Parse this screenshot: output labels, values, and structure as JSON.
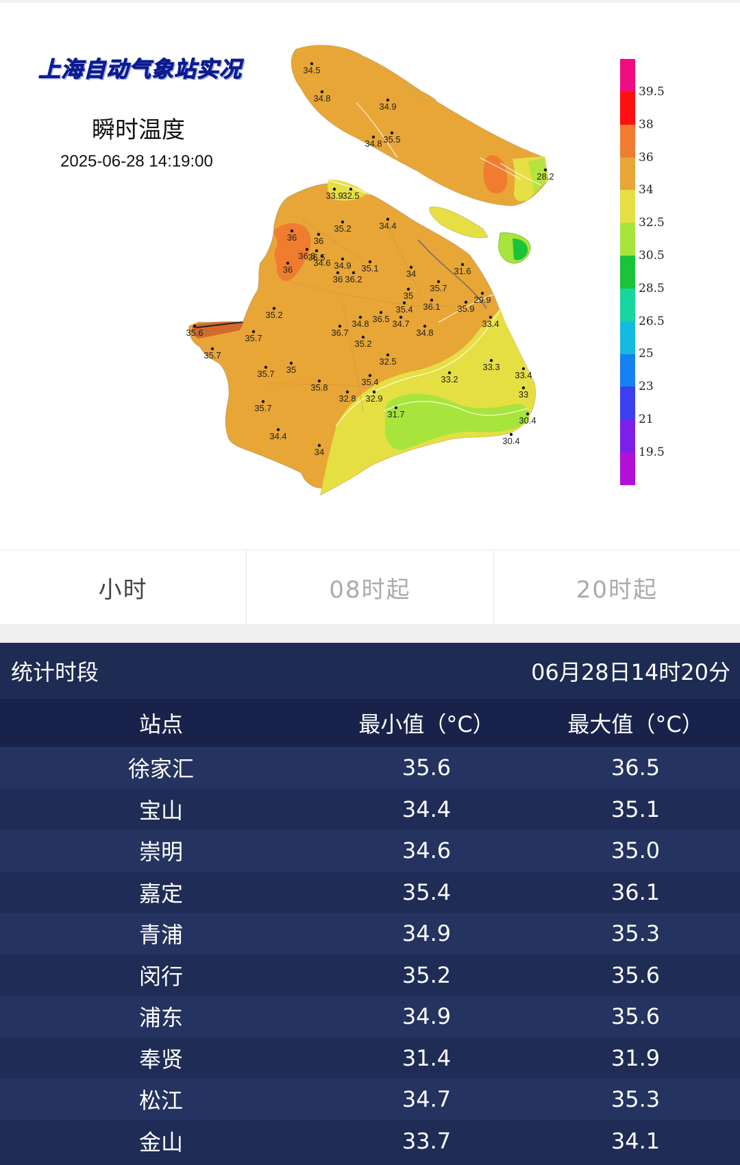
{
  "map": {
    "logo_title": "上海自动气象站实况",
    "subtitle": "瞬时温度",
    "timestamp": "2025-06-28 14:19:00",
    "legend": {
      "labels": [
        "39.5",
        "38",
        "36",
        "34",
        "32.5",
        "30.5",
        "28.5",
        "26.5",
        "25",
        "23",
        "21",
        "19.5"
      ],
      "colors": [
        "#ef0d7f",
        "#ff1010",
        "#f07c30",
        "#e8a637",
        "#e6df44",
        "#a8e53c",
        "#1ac33a",
        "#17d6a0",
        "#16b9e0",
        "#1681f0",
        "#3a3ff0",
        "#7a20e8",
        "#b010d8"
      ]
    },
    "stations": [
      {
        "v": "34.5"
      },
      {
        "v": "34.8"
      },
      {
        "v": "34.9"
      },
      {
        "v": "34.8"
      },
      {
        "v": "35.5"
      },
      {
        "v": "28.2"
      },
      {
        "v": "33.9"
      },
      {
        "v": "32.5"
      },
      {
        "v": "35.2"
      },
      {
        "v": "34.4"
      },
      {
        "v": "36.5"
      },
      {
        "v": "36"
      },
      {
        "v": "36"
      },
      {
        "v": "36.8"
      },
      {
        "v": "34.6"
      },
      {
        "v": "34.9"
      },
      {
        "v": "35.1"
      },
      {
        "v": "36"
      },
      {
        "v": "36.2"
      },
      {
        "v": "36"
      },
      {
        "v": "31.6"
      },
      {
        "v": "34"
      },
      {
        "v": "35.7"
      },
      {
        "v": "35"
      },
      {
        "v": "35.4"
      },
      {
        "v": "36.1"
      },
      {
        "v": "35.9"
      },
      {
        "v": "29.9"
      },
      {
        "v": "35.2"
      },
      {
        "v": "34.8"
      },
      {
        "v": "36.5"
      },
      {
        "v": "34.7"
      },
      {
        "v": "34.8"
      },
      {
        "v": "33.4"
      },
      {
        "v": "35.6"
      },
      {
        "v": "35.7"
      },
      {
        "v": "36.7"
      },
      {
        "v": "35.2"
      },
      {
        "v": "35.7"
      },
      {
        "v": "32.5"
      },
      {
        "v": "33.3"
      },
      {
        "v": "35.7"
      },
      {
        "v": "35"
      },
      {
        "v": "33.4"
      },
      {
        "v": "35.8"
      },
      {
        "v": "35.4"
      },
      {
        "v": "33.2"
      },
      {
        "v": "33"
      },
      {
        "v": "32.8"
      },
      {
        "v": "32.9"
      },
      {
        "v": "35.7"
      },
      {
        "v": "31.7"
      },
      {
        "v": "30.4"
      },
      {
        "v": "34.4"
      },
      {
        "v": "30.4"
      },
      {
        "v": "34"
      }
    ]
  },
  "tabs": [
    {
      "label": "小时",
      "active": true
    },
    {
      "label": "08时起",
      "active": false
    },
    {
      "label": "20时起",
      "active": false
    }
  ],
  "stats": {
    "period_label": "统计时段",
    "period_value": "06月28日14时20分",
    "columns": [
      "站点",
      "最小值（°C）",
      "最大值（°C）"
    ],
    "rows": [
      [
        "徐家汇",
        "35.6",
        "36.5"
      ],
      [
        "宝山",
        "34.4",
        "35.1"
      ],
      [
        "崇明",
        "34.6",
        "35.0"
      ],
      [
        "嘉定",
        "35.4",
        "36.1"
      ],
      [
        "青浦",
        "34.9",
        "35.3"
      ],
      [
        "闵行",
        "35.2",
        "35.6"
      ],
      [
        "浦东",
        "34.9",
        "35.6"
      ],
      [
        "奉贤",
        "31.4",
        "31.9"
      ],
      [
        "松江",
        "34.7",
        "35.3"
      ],
      [
        "金山",
        "33.7",
        "34.1"
      ]
    ]
  }
}
